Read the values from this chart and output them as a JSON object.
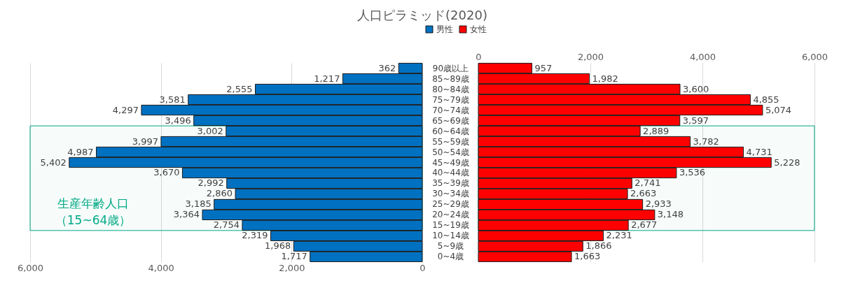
{
  "chart_data": [
    {
      "type": "bar",
      "orientation": "horizontal",
      "title": "人口ピラミッド(2020)",
      "legend": "top",
      "grid": "x",
      "categories": [
        "90歳以上",
        "85~89歳",
        "80~84歳",
        "75~79歳",
        "70~74歳",
        "65~69歳",
        "60~64歳",
        "55~59歳",
        "50~54歳",
        "45~49歳",
        "40~44歳",
        "35~39歳",
        "30~34歳",
        "25~29歳",
        "20~24歳",
        "15~19歳",
        "10~14歳",
        "5~9歳",
        "0~4歳"
      ],
      "series": [
        {
          "name": "男性",
          "color": "#0070c0",
          "values": [
            362,
            1217,
            2555,
            3581,
            4297,
            3496,
            3002,
            3997,
            4987,
            5402,
            3670,
            2992,
            2860,
            3185,
            3364,
            2754,
            2319,
            1968,
            1717
          ],
          "value_labels": [
            "362",
            "1,217",
            "2,555",
            "3,581",
            "4,297",
            "3,496",
            "3,002",
            "3,997",
            "4,987",
            "5,402",
            "3,670",
            "2,992",
            "2,860",
            "3,185",
            "3,364",
            "2,754",
            "2,319",
            "1,968",
            "1,717"
          ]
        }
      ],
      "xlim": [
        6000,
        0
      ],
      "xticks": [
        {
          "value": 6000,
          "label": "6,000"
        },
        {
          "value": 4000,
          "label": "4,000"
        },
        {
          "value": 2000,
          "label": "2,000"
        },
        0
      ],
      "bands": [
        {
          "axis": "y",
          "from": "60~64歳",
          "to": "15~19歳",
          "label": "生産年齢人口（15~64歳）",
          "color": "#00a884"
        }
      ]
    },
    {
      "type": "bar",
      "orientation": "horizontal",
      "legend": "top",
      "grid": "x",
      "tick_labels": "x",
      "categories": [
        "90歳以上",
        "85~89歳",
        "80~84歳",
        "75~79歳",
        "70~74歳",
        "65~69歳",
        "60~64歳",
        "55~59歳",
        "50~54歳",
        "45~49歳",
        "40~44歳",
        "35~39歳",
        "30~34歳",
        "25~29歳",
        "20~24歳",
        "15~19歳",
        "10~14歳",
        "5~9歳",
        "0~4歳"
      ],
      "series": [
        {
          "name": "女性",
          "color": "#ff0000",
          "values": [
            957,
            1982,
            3600,
            4855,
            5074,
            3597,
            2889,
            3782,
            4731,
            5228,
            3536,
            2741,
            2663,
            2933,
            3148,
            2677,
            2231,
            1866,
            1663
          ],
          "value_labels": [
            "957",
            "1,982",
            "3,600",
            "4,855",
            "5,074",
            "3,597",
            "2,889",
            "3,782",
            "4,731",
            "5,228",
            "3,536",
            "2,741",
            "2,663",
            "2,933",
            "3,148",
            "2,677",
            "2,231",
            "1,866",
            "1,663"
          ]
        }
      ],
      "xlim": [
        0,
        6000
      ],
      "xticks": [
        0,
        {
          "value": 2000,
          "label": "2,000"
        },
        {
          "value": 4000,
          "label": "4,000"
        },
        {
          "value": 6000,
          "label": "6,000"
        }
      ],
      "bands": [
        {
          "axis": "y",
          "from": "60~64歳",
          "to": "15~19歳",
          "color": "#00a884"
        }
      ]
    }
  ]
}
